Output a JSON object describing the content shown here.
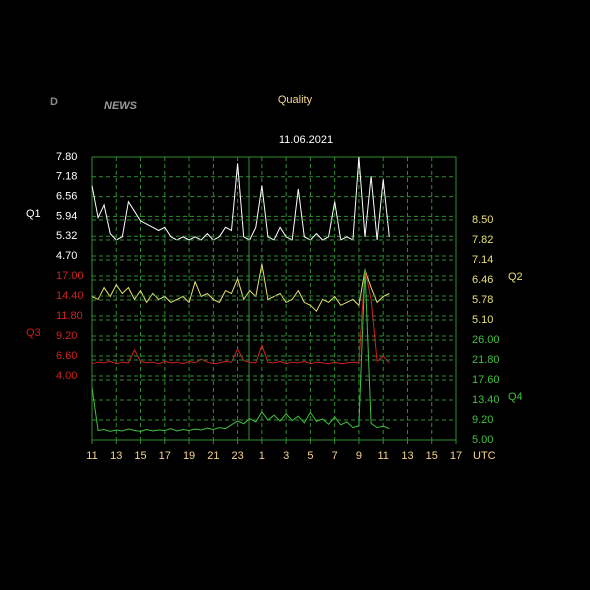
{
  "logo": {
    "letter": "D",
    "word": "NEWS"
  },
  "chart_data": {
    "type": "line",
    "title": "Quality",
    "subtitle": "11.06.2021",
    "x_unit": "UTC",
    "x": [
      0,
      0.5,
      1,
      1.5,
      2,
      2.5,
      3,
      3.5,
      4,
      4.5,
      5,
      5.5,
      6,
      6.5,
      7,
      7.5,
      8,
      8.5,
      9,
      9.5,
      10,
      10.5,
      11,
      11.5,
      12,
      12.5,
      13,
      13.5,
      14,
      14.5,
      15,
      15.5,
      16,
      16.5,
      17,
      17.5,
      18,
      18.5,
      19,
      19.5,
      20,
      20.5,
      21,
      21.5,
      22,
      22.5,
      23,
      23.5,
      24,
      24.5
    ],
    "xlim": [
      0,
      30
    ],
    "xticks": [
      {
        "value": 0,
        "label": "11"
      },
      {
        "value": 2,
        "label": "13"
      },
      {
        "value": 4,
        "label": "15"
      },
      {
        "value": 6,
        "label": "17"
      },
      {
        "value": 8,
        "label": "19"
      },
      {
        "value": 10,
        "label": "21"
      },
      {
        "value": 12,
        "label": "23"
      },
      {
        "value": 14,
        "label": "1"
      },
      {
        "value": 16,
        "label": "3"
      },
      {
        "value": 18,
        "label": "5"
      },
      {
        "value": 20,
        "label": "7"
      },
      {
        "value": 22,
        "label": "9"
      },
      {
        "value": 24,
        "label": "11"
      },
      {
        "value": 26,
        "label": "13"
      },
      {
        "value": 28,
        "label": "15"
      },
      {
        "value": 30,
        "label": "17"
      }
    ],
    "grid": true,
    "series": [
      {
        "name": "Q1",
        "color": "#ffffff",
        "axis": "left",
        "ylim": [
          4.7,
          7.8
        ],
        "yticks": [
          {
            "value": 4.7,
            "label": "4.70"
          },
          {
            "value": 5.32,
            "label": "5.32"
          },
          {
            "value": 5.94,
            "label": "5.94"
          },
          {
            "value": 6.56,
            "label": "6.56"
          },
          {
            "value": 7.18,
            "label": "7.18"
          },
          {
            "value": 7.8,
            "label": "7.80"
          }
        ],
        "values": [
          6.9,
          5.9,
          6.3,
          5.4,
          5.2,
          5.3,
          6.4,
          6.1,
          5.8,
          5.7,
          5.6,
          5.5,
          5.6,
          5.3,
          5.2,
          5.3,
          5.2,
          5.3,
          5.2,
          5.4,
          5.2,
          5.3,
          5.6,
          5.5,
          7.6,
          5.3,
          5.2,
          5.6,
          6.9,
          5.3,
          5.2,
          5.6,
          5.3,
          5.2,
          6.8,
          5.3,
          5.2,
          5.4,
          5.2,
          5.3,
          6.4,
          5.2,
          5.3,
          5.2,
          7.8,
          5.3,
          7.2,
          5.2,
          7.1,
          5.3
        ]
      },
      {
        "name": "Q2",
        "color": "#e8e070",
        "axis": "right",
        "ylim": [
          5.1,
          8.5
        ],
        "yticks": [
          {
            "value": 5.1,
            "label": "5.10"
          },
          {
            "value": 5.78,
            "label": "5.78"
          },
          {
            "value": 6.46,
            "label": "6.46"
          },
          {
            "value": 7.14,
            "label": "7.14"
          },
          {
            "value": 7.82,
            "label": "7.82"
          },
          {
            "value": 8.5,
            "label": "8.50"
          }
        ],
        "values": [
          5.9,
          5.8,
          6.2,
          5.9,
          6.3,
          6.0,
          6.2,
          5.8,
          6.1,
          5.7,
          6.0,
          5.8,
          5.9,
          5.7,
          5.8,
          5.9,
          5.7,
          6.4,
          5.9,
          6.0,
          5.8,
          5.7,
          6.1,
          6.0,
          6.5,
          5.8,
          6.1,
          5.9,
          7.0,
          5.8,
          5.9,
          6.0,
          5.7,
          5.8,
          6.1,
          5.7,
          5.6,
          5.4,
          5.8,
          5.7,
          5.9,
          5.6,
          5.7,
          5.8,
          5.6,
          6.8,
          6.2,
          5.7,
          5.9,
          6.0
        ]
      },
      {
        "name": "Q3",
        "color": "#d02020",
        "axis": "left",
        "ylim": [
          4.0,
          17.0
        ],
        "yticks": [
          {
            "value": 4.0,
            "label": "4.00"
          },
          {
            "value": 6.6,
            "label": "6.60"
          },
          {
            "value": 9.2,
            "label": "9.20"
          },
          {
            "value": 11.8,
            "label": "11.80"
          },
          {
            "value": 14.4,
            "label": "14.40"
          },
          {
            "value": 17.0,
            "label": "17.00"
          }
        ],
        "values": [
          5.6,
          5.8,
          5.7,
          5.9,
          5.6,
          5.8,
          5.7,
          7.4,
          5.9,
          5.7,
          5.8,
          5.6,
          5.9,
          5.7,
          5.8,
          5.6,
          5.9,
          5.7,
          6.2,
          5.8,
          5.6,
          5.7,
          5.9,
          5.8,
          7.5,
          6.0,
          5.8,
          5.7,
          8.0,
          5.8,
          5.7,
          5.9,
          5.6,
          5.8,
          5.7,
          5.9,
          5.6,
          5.8,
          5.7,
          5.6,
          5.8,
          5.6,
          5.7,
          5.8,
          5.7,
          17.8,
          14.0,
          5.9,
          6.6,
          5.7
        ]
      },
      {
        "name": "Q4",
        "color": "#40c040",
        "axis": "right",
        "ylim": [
          5.0,
          26.0
        ],
        "yticks": [
          {
            "value": 5.0,
            "label": "5.00"
          },
          {
            "value": 9.2,
            "label": "9.20"
          },
          {
            "value": 13.4,
            "label": "13.40"
          },
          {
            "value": 17.6,
            "label": "17.60"
          },
          {
            "value": 21.8,
            "label": "21.80"
          },
          {
            "value": 26.0,
            "label": "26.00"
          }
        ],
        "values": [
          16.0,
          7.0,
          7.2,
          6.8,
          7.1,
          6.9,
          7.3,
          7.0,
          6.8,
          7.2,
          6.9,
          7.1,
          7.0,
          7.4,
          6.9,
          7.2,
          7.0,
          7.3,
          7.1,
          7.5,
          7.2,
          7.6,
          7.4,
          8.2,
          9.0,
          8.4,
          9.5,
          8.8,
          10.9,
          9.2,
          10.2,
          9.0,
          10.5,
          9.1,
          10.0,
          8.6,
          10.8,
          8.9,
          9.4,
          8.3,
          9.8,
          8.2,
          8.8,
          7.6,
          8.0,
          41.0,
          8.5,
          7.6,
          7.9,
          7.4
        ]
      }
    ]
  }
}
